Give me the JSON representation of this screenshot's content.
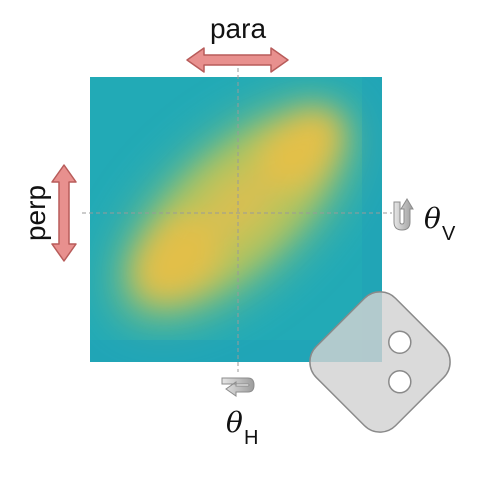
{
  "labels": {
    "para": "para",
    "perp": "perp",
    "theta_v_symbol": "θ",
    "theta_v_sub": "V",
    "theta_h_symbol": "θ",
    "theta_h_sub": "H"
  },
  "colors": {
    "arrow_fill": "#e8908e",
    "arrow_stroke": "#b85c5a",
    "map_low": "#22aab6",
    "map_mid": "#9cc266",
    "map_high": "#e4c04c",
    "paddle_fill": "#d2d2d2",
    "paddle_stroke": "#8a8a8a",
    "rotation_arrow": "#b8b8b8",
    "crosshair": "#9a9a9a"
  },
  "icons": {
    "para_arrow": "double-horizontal-arrow-icon",
    "perp_arrow": "double-vertical-arrow-icon",
    "rotate_v": "rotate-vertical-axis-icon",
    "rotate_h": "rotate-horizontal-axis-icon",
    "paddle": "rounded-square-paddle-icon"
  }
}
